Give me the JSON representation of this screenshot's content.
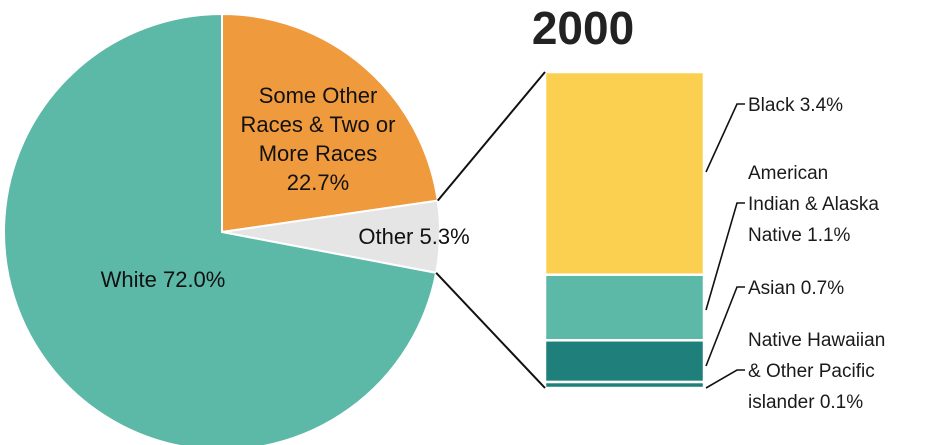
{
  "chart_data": [
    {
      "type": "pie",
      "title": "2000",
      "slices": [
        {
          "name": "White",
          "value": 72.0,
          "label": "White 72.0%",
          "color": "#5cb8a7"
        },
        {
          "name": "Some Other Races & Two or More Races",
          "value": 22.7,
          "label_lines": [
            "Some Other",
            "Races & Two or",
            "More Races",
            "22.7%"
          ],
          "color": "#f09a3e"
        },
        {
          "name": "Other",
          "value": 5.3,
          "label": "Other 5.3%",
          "color": "#e5e5e5"
        }
      ]
    },
    {
      "type": "bar",
      "stacked": true,
      "breakdown_of": "Other 5.3%",
      "segments": [
        {
          "name": "Black",
          "value": 3.4,
          "label_lines": [
            "Black 3.4%"
          ],
          "color": "#fbd050"
        },
        {
          "name": "American Indian & Alaska Native",
          "value": 1.1,
          "label_lines": [
            "American",
            "Indian & Alaska",
            "Native 1.1%"
          ],
          "color": "#5cb8a7"
        },
        {
          "name": "Asian",
          "value": 0.7,
          "label_lines": [
            "Asian 0.7%"
          ],
          "color": "#1f7f7b"
        },
        {
          "name": "Native Hawaiian & Other Pacific islander",
          "value": 0.1,
          "label_lines": [
            "Native Hawaiian",
            "& Other Pacific",
            "islander 0.1%"
          ],
          "color": "#1f7f7b"
        }
      ]
    }
  ]
}
